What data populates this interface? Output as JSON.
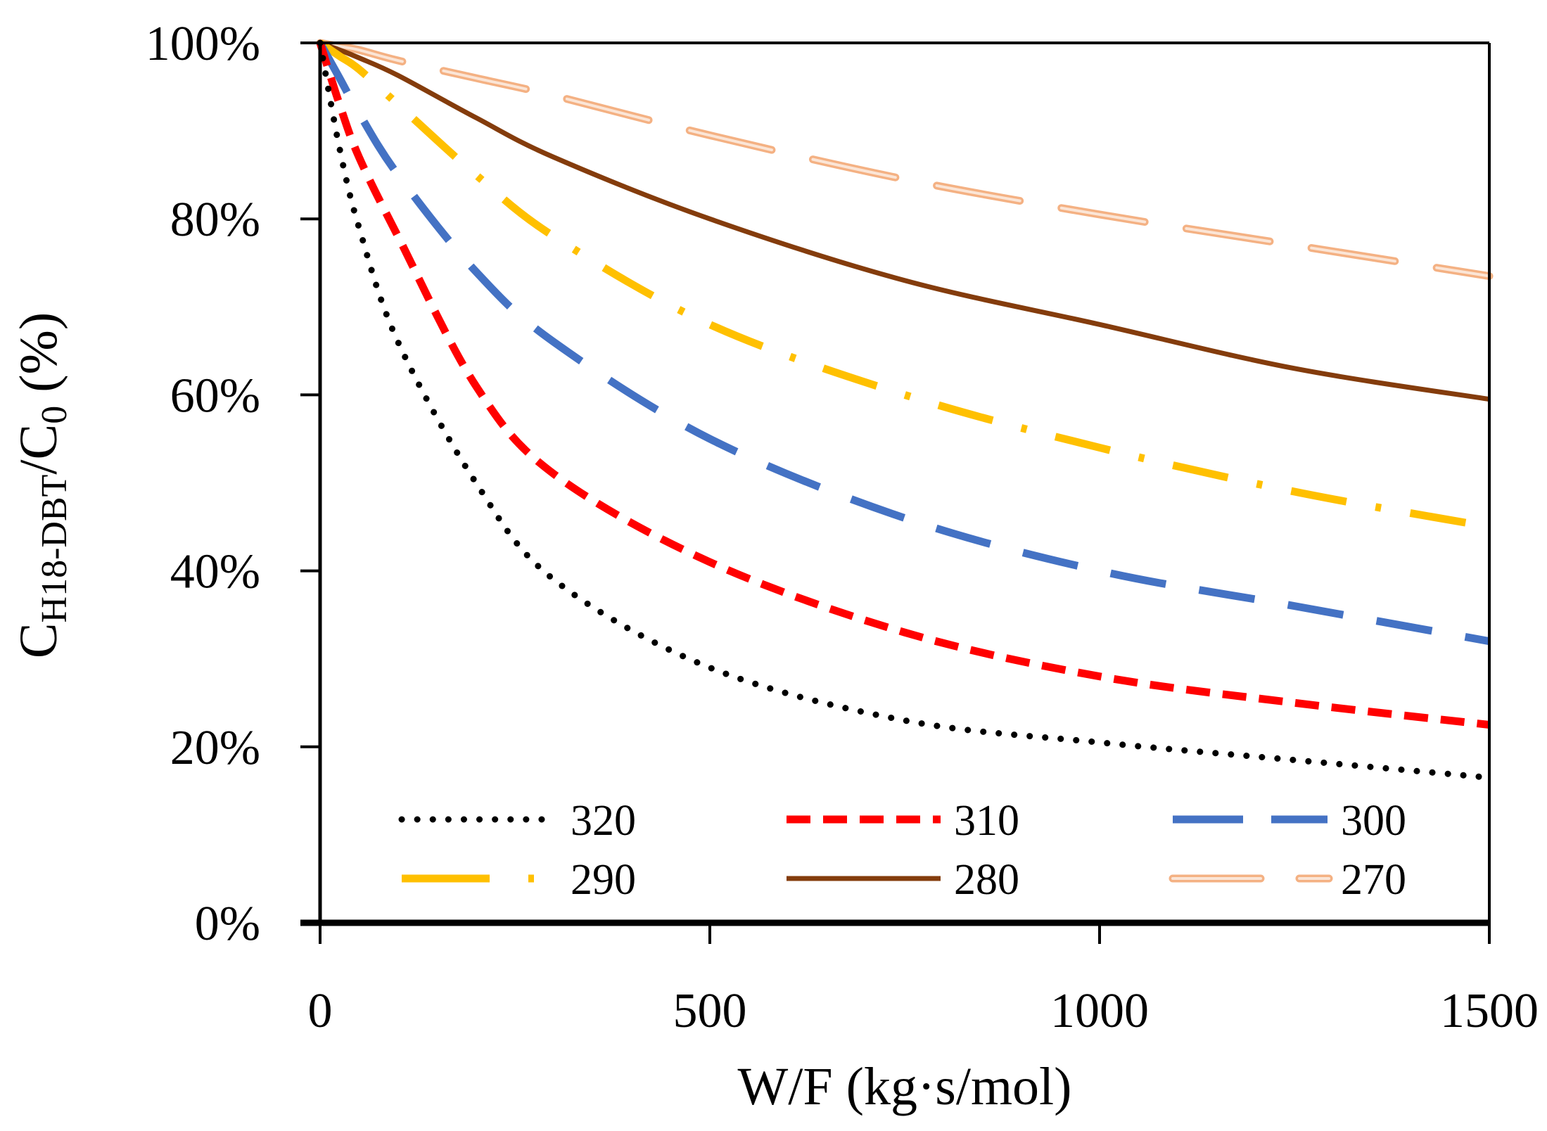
{
  "chart_data": {
    "type": "line",
    "title": "",
    "xlabel": "W/F (kg·s/mol)",
    "ylabel": {
      "main": "C",
      "sub1": "H18-DBT",
      "slash": "/C",
      "sub2": "0",
      "unit": " (%)"
    },
    "xlim": [
      0,
      1500
    ],
    "ylim": [
      0,
      100
    ],
    "xticks": [
      "0",
      "500",
      "1000",
      "1500"
    ],
    "xtick_values": [
      0,
      500,
      1000,
      1500
    ],
    "yticks": [
      "0%",
      "20%",
      "40%",
      "60%",
      "80%",
      "100%"
    ],
    "ytick_values": [
      0,
      20,
      40,
      60,
      80,
      100
    ],
    "grid": false,
    "legend_placement": "bottom, inside, 3 columns",
    "x": [
      0,
      25,
      50,
      100,
      200,
      300,
      500,
      750,
      1000,
      1250,
      1500
    ],
    "series": [
      {
        "name": "320",
        "color": "#000000",
        "style": "dotted",
        "values": [
          100,
          88,
          79,
          66,
          50,
          39,
          29,
          23,
          20.5,
          18.5,
          16.5
        ]
      },
      {
        "name": "310",
        "color": "#ff0000",
        "style": "dashed",
        "values": [
          100,
          93,
          87,
          78,
          61,
          51,
          41,
          33,
          28,
          25,
          22.5
        ]
      },
      {
        "name": "300",
        "color": "#4472c4",
        "style": "long-dash",
        "values": [
          100,
          96,
          92,
          85,
          74,
          66,
          55,
          46,
          40,
          36,
          32
        ]
      },
      {
        "name": "290",
        "color": "#ffc000",
        "style": "long-dash-dot",
        "values": [
          100,
          98.5,
          97,
          93,
          85,
          78,
          68,
          60,
          54,
          49,
          45
        ]
      },
      {
        "name": "280",
        "color": "#843c0c",
        "style": "solid",
        "values": [
          100,
          99.2,
          98.3,
          96.3,
          91.5,
          87,
          80,
          73,
          68,
          63,
          59.5
        ]
      },
      {
        "name": "270",
        "color": "#f4b183",
        "style": "double-dashed",
        "values": [
          100,
          99.6,
          99.2,
          98,
          96,
          94,
          89.5,
          84.5,
          80.5,
          77,
          73.5
        ]
      }
    ]
  }
}
